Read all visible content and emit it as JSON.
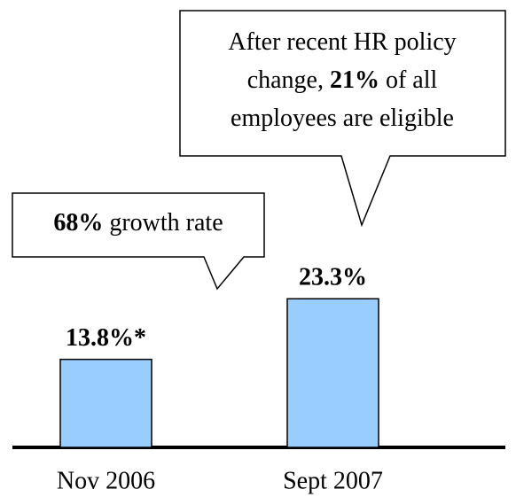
{
  "chart_data": {
    "type": "bar",
    "categories": [
      "Nov 2006",
      "Sept 2007"
    ],
    "values": [
      13.8,
      23.3
    ],
    "value_labels": [
      "13.8%*",
      "23.3%"
    ],
    "color": "#99ccff",
    "annotations": [
      [
        [
          {
            "text": "68%",
            "bold": true
          },
          {
            "text": "growth rate"
          }
        ]
      ],
      [
        [
          {
            "text": "After recent HR policy"
          }
        ],
        [
          {
            "text": "change,"
          },
          {
            "text": "21%",
            "bold": true
          },
          {
            "text": "of all"
          }
        ],
        [
          {
            "text": "employees are eligible"
          }
        ]
      ]
    ]
  }
}
